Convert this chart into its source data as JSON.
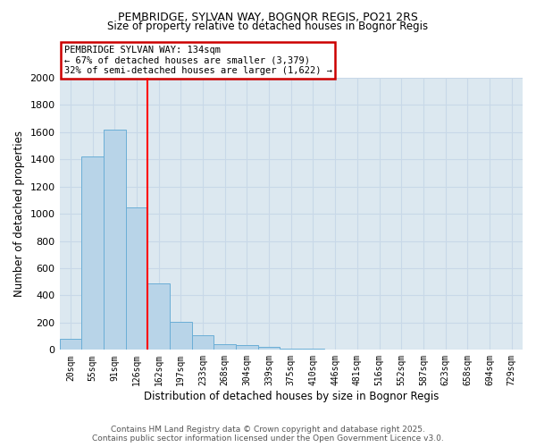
{
  "title1": "PEMBRIDGE, SYLVAN WAY, BOGNOR REGIS, PO21 2RS",
  "title2": "Size of property relative to detached houses in Bognor Regis",
  "xlabel": "Distribution of detached houses by size in Bognor Regis",
  "ylabel": "Number of detached properties",
  "categories": [
    "20sqm",
    "55sqm",
    "91sqm",
    "126sqm",
    "162sqm",
    "197sqm",
    "233sqm",
    "268sqm",
    "304sqm",
    "339sqm",
    "375sqm",
    "410sqm",
    "446sqm",
    "481sqm",
    "516sqm",
    "552sqm",
    "587sqm",
    "623sqm",
    "658sqm",
    "694sqm",
    "729sqm"
  ],
  "values": [
    80,
    1420,
    1620,
    1050,
    490,
    205,
    105,
    40,
    35,
    22,
    12,
    8,
    0,
    0,
    0,
    0,
    0,
    0,
    0,
    0,
    0
  ],
  "bar_color": "#b8d4e8",
  "bar_edge_color": "#6baed6",
  "grid_color": "#c8d8e8",
  "background_color": "#dce8f0",
  "red_line_x": 3.5,
  "annotation_text": "PEMBRIDGE SYLVAN WAY: 134sqm\n← 67% of detached houses are smaller (3,379)\n32% of semi-detached houses are larger (1,622) →",
  "annotation_box_color": "#cc0000",
  "ylim": [
    0,
    2000
  ],
  "yticks": [
    0,
    200,
    400,
    600,
    800,
    1000,
    1200,
    1400,
    1600,
    1800,
    2000
  ],
  "footer1": "Contains HM Land Registry data © Crown copyright and database right 2025.",
  "footer2": "Contains public sector information licensed under the Open Government Licence v3.0."
}
